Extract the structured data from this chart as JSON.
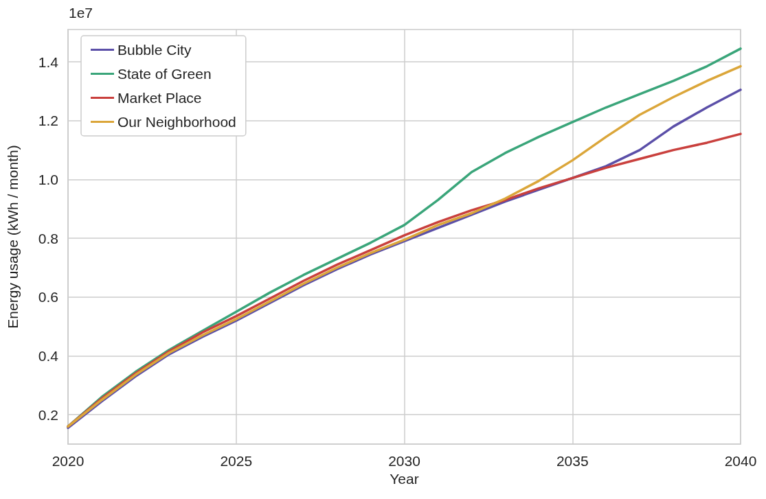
{
  "chart_data": {
    "type": "line",
    "xlabel": "Year",
    "ylabel": "Energy usage (kWh / month)",
    "annotations": [
      "1e7"
    ],
    "x": [
      2020,
      2021,
      2022,
      2023,
      2024,
      2025,
      2026,
      2027,
      2028,
      2029,
      2030,
      2031,
      2032,
      2033,
      2034,
      2035,
      2036,
      2037,
      2038,
      2039,
      2040
    ],
    "series": [
      {
        "name": "Bubble City",
        "color": "#5b4fa8",
        "values": [
          0.155,
          0.245,
          0.33,
          0.405,
          0.465,
          0.52,
          0.58,
          0.64,
          0.695,
          0.745,
          0.79,
          0.835,
          0.88,
          0.925,
          0.965,
          1.005,
          1.045,
          1.1,
          1.18,
          1.245,
          1.305
        ]
      },
      {
        "name": "State of Green",
        "color": "#3aa57a",
        "values": [
          0.16,
          0.26,
          0.345,
          0.42,
          0.485,
          0.55,
          0.615,
          0.675,
          0.73,
          0.785,
          0.845,
          0.93,
          1.025,
          1.09,
          1.145,
          1.195,
          1.245,
          1.29,
          1.335,
          1.385,
          1.445
        ]
      },
      {
        "name": "Market Place",
        "color": "#c9403d",
        "values": [
          0.16,
          0.255,
          0.34,
          0.415,
          0.48,
          0.535,
          0.595,
          0.655,
          0.71,
          0.76,
          0.81,
          0.855,
          0.895,
          0.93,
          0.97,
          1.005,
          1.04,
          1.07,
          1.1,
          1.125,
          1.155
        ]
      },
      {
        "name": "Our Neighborhood",
        "color": "#dba63a",
        "values": [
          0.16,
          0.25,
          0.335,
          0.41,
          0.47,
          0.525,
          0.585,
          0.645,
          0.7,
          0.75,
          0.795,
          0.845,
          0.885,
          0.935,
          0.995,
          1.065,
          1.145,
          1.22,
          1.28,
          1.335,
          1.385
        ]
      }
    ],
    "xlim": [
      2020,
      2040
    ],
    "xticks": [
      2020,
      2025,
      2030,
      2035,
      2040
    ],
    "ylim": [
      0.1,
      1.51
    ],
    "yticks": [
      {
        "value": 0.2,
        "label": "0.2"
      },
      {
        "value": 0.4,
        "label": "0.4"
      },
      {
        "value": 0.6,
        "label": "0.6"
      },
      {
        "value": 0.8,
        "label": "0.8"
      },
      {
        "value": 1.0,
        "label": "1.0"
      },
      {
        "value": 1.2,
        "label": "1.2"
      },
      {
        "value": 1.4,
        "label": "1.4"
      }
    ],
    "grid": true,
    "legend": "top left",
    "line_style": "solid",
    "marker": "none"
  }
}
